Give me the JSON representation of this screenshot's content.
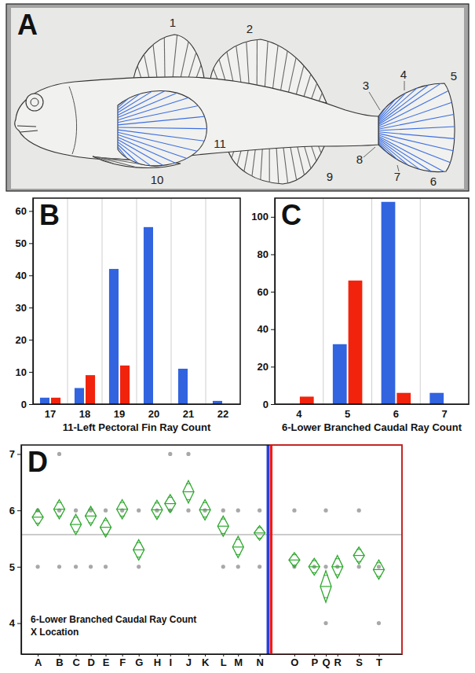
{
  "diagram": {
    "panel": "A",
    "labels": [
      "1",
      "2",
      "3",
      "4",
      "5",
      "6",
      "7",
      "8",
      "9",
      "10",
      "11"
    ]
  },
  "chart_data": [
    {
      "panel": "B",
      "type": "bar",
      "x_label": "11-Left Pectoral Fin Ray Count",
      "categories": [
        "17",
        "18",
        "19",
        "20",
        "21",
        "22"
      ],
      "series": [
        {
          "color": "#3264e0",
          "values": [
            2,
            5,
            42,
            55,
            11,
            1
          ]
        },
        {
          "color": "#f2230c",
          "values": [
            2,
            9,
            12,
            0,
            0,
            0
          ]
        }
      ],
      "ylim": [
        0,
        64
      ],
      "yticks": [
        0,
        10,
        20,
        30,
        40,
        50,
        60
      ]
    },
    {
      "panel": "C",
      "type": "bar",
      "x_label": "6-Lower Branched Caudal Ray Count",
      "categories": [
        "4",
        "5",
        "6",
        "7"
      ],
      "series": [
        {
          "color": "#3264e0",
          "values": [
            0,
            32,
            108,
            6
          ]
        },
        {
          "color": "#f2230c",
          "values": [
            4,
            66,
            6,
            0
          ]
        }
      ],
      "ylim": [
        0,
        110
      ],
      "yticks": [
        0,
        20,
        40,
        60,
        80,
        100
      ]
    },
    {
      "panel": "D",
      "type": "means_diamond",
      "color": "#2fa82f",
      "annotations": [
        "6-Lower Branched Caudal Ray Count",
        "X Location"
      ],
      "x": [
        1.0,
        2.3,
        3.3,
        4.2,
        5.1,
        6.1,
        7.1,
        8.2,
        9.0,
        10.1,
        11.1,
        12.2,
        13.1,
        14.4,
        16.5,
        17.7,
        18.4,
        19.1,
        20.4,
        21.6
      ],
      "values": [
        5.88,
        6.02,
        5.75,
        5.9,
        5.7,
        6.02,
        5.3,
        6.01,
        6.12,
        6.33,
        6.01,
        5.72,
        5.35,
        5.6,
        5.12,
        5.0,
        4.65,
        5.0,
        5.2,
        4.95
      ],
      "ci": [
        0.15,
        0.17,
        0.18,
        0.17,
        0.17,
        0.17,
        0.18,
        0.17,
        0.16,
        0.2,
        0.18,
        0.18,
        0.19,
        0.13,
        0.13,
        0.15,
        0.28,
        0.2,
        0.15,
        0.17
      ],
      "points": [
        [
          6,
          5
        ],
        [
          7,
          6,
          5
        ],
        [
          6,
          5
        ],
        [
          6,
          5
        ],
        [
          6,
          5
        ],
        [
          6
        ],
        [
          6,
          5
        ],
        [
          6
        ],
        [
          7,
          6
        ],
        [
          7,
          6
        ],
        [
          6
        ],
        [
          6,
          5
        ],
        [
          6,
          5
        ],
        [
          6,
          5
        ],
        [
          6,
          5
        ],
        [
          5
        ],
        [
          6,
          5,
          4
        ],
        [
          5
        ],
        [
          6,
          5
        ],
        [
          5,
          4
        ]
      ],
      "mean_line": 5.57,
      "divider_x": 15.0,
      "xlim": [
        0,
        23
      ],
      "xticks": [
        {
          "value": 1.0,
          "label": "A"
        },
        {
          "value": 2.3,
          "label": "B"
        },
        {
          "value": 3.3,
          "label": "C"
        },
        {
          "value": 4.2,
          "label": "D"
        },
        {
          "value": 5.1,
          "label": "E"
        },
        {
          "value": 6.1,
          "label": "F"
        },
        {
          "value": 7.1,
          "label": "G"
        },
        {
          "value": 8.2,
          "label": "H"
        },
        {
          "value": 9.0,
          "label": "I"
        },
        {
          "value": 10.1,
          "label": "J"
        },
        {
          "value": 11.1,
          "label": "K"
        },
        {
          "value": 12.2,
          "label": "L"
        },
        {
          "value": 13.1,
          "label": "M"
        },
        {
          "value": 14.4,
          "label": "N"
        },
        {
          "value": 16.5,
          "label": "O"
        },
        {
          "value": 17.7,
          "label": "P"
        },
        {
          "value": 18.4,
          "label": "Q"
        },
        {
          "value": 19.1,
          "label": "R"
        },
        {
          "value": 20.4,
          "label": "S"
        },
        {
          "value": 21.6,
          "label": "T"
        }
      ],
      "ylim": [
        3.45,
        7.16
      ],
      "yticks": [
        4,
        5,
        6,
        7
      ]
    }
  ]
}
